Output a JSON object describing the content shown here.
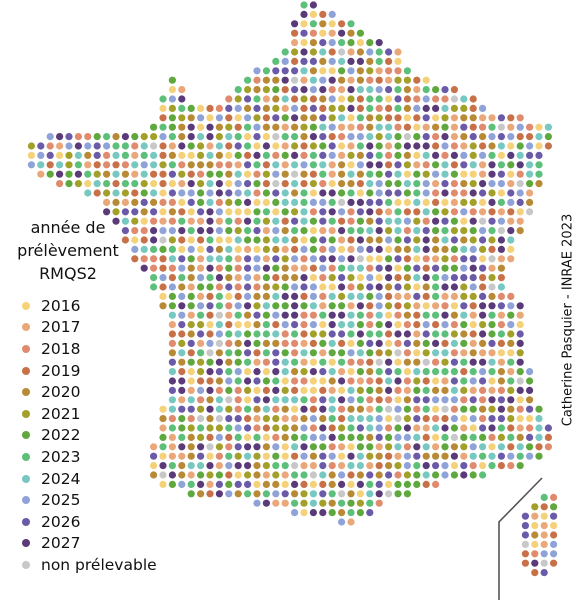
{
  "legend": {
    "title_lines": [
      "année de",
      "prélèvement",
      "RMQS2"
    ],
    "items": [
      {
        "label": "2016",
        "color": "#f5d27a"
      },
      {
        "label": "2017",
        "color": "#eaa87a"
      },
      {
        "label": "2018",
        "color": "#e08a6e"
      },
      {
        "label": "2019",
        "color": "#c87148"
      },
      {
        "label": "2020",
        "color": "#b88a36"
      },
      {
        "label": "2021",
        "color": "#a3a02a"
      },
      {
        "label": "2022",
        "color": "#5ea83e"
      },
      {
        "label": "2023",
        "color": "#5cbf7a"
      },
      {
        "label": "2024",
        "color": "#76c8c0"
      },
      {
        "label": "2025",
        "color": "#8fa3d8"
      },
      {
        "label": "2026",
        "color": "#6a5aa8"
      },
      {
        "label": "2027",
        "color": "#5a3a78"
      },
      {
        "label": "non prélevable",
        "color": "#c8c8c8"
      }
    ]
  },
  "credit": "Catherine Pasquier - INRAE 2023"
}
